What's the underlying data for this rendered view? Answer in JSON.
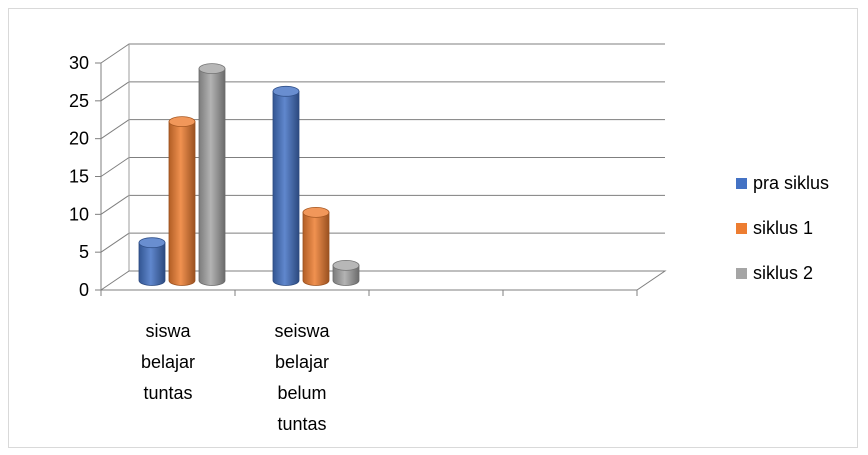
{
  "chart_data": {
    "type": "bar",
    "variant": "3d-cylinder-clustered",
    "title": "",
    "xlabel": "",
    "ylabel": "",
    "ylim": [
      0,
      30
    ],
    "yticks": [
      0,
      5,
      10,
      15,
      20,
      25,
      30
    ],
    "ytick_labels": [
      "0",
      "5",
      "10",
      "15",
      "20",
      "25",
      "30"
    ],
    "grid": true,
    "categories": [
      [
        "siswa",
        "belajar",
        "tuntas"
      ],
      [
        "seiswa",
        "belajar",
        "belum",
        "tuntas"
      ]
    ],
    "series": [
      {
        "name": "pra siklus",
        "color": "#4472c4",
        "values": [
          5,
          25
        ]
      },
      {
        "name": "siklus 1",
        "color": "#ed7d31",
        "values": [
          21,
          9
        ]
      },
      {
        "name": "siklus 2",
        "color": "#a5a5a5",
        "values": [
          28,
          2
        ]
      }
    ],
    "legend": {
      "position": "right"
    }
  }
}
